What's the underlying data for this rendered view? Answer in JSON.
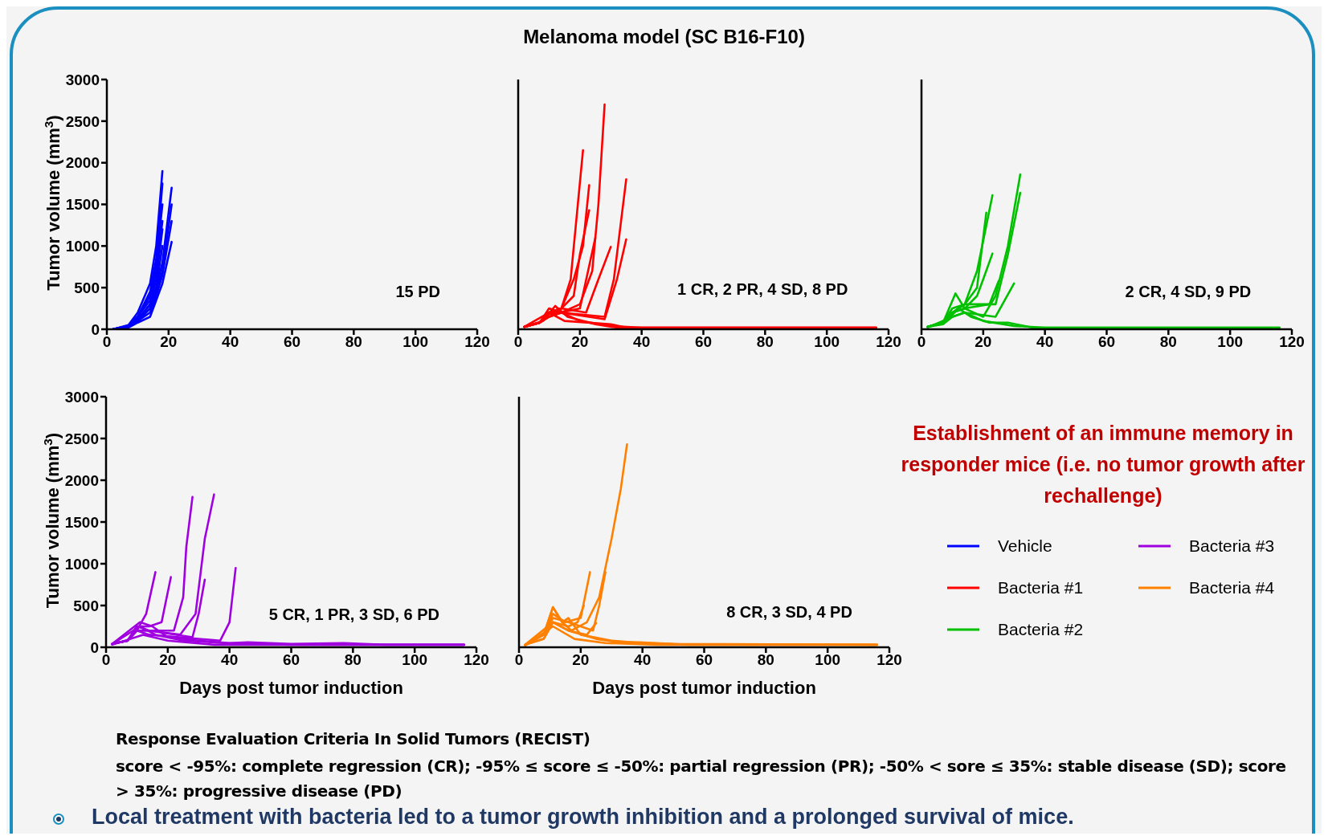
{
  "chart_data": [
    {
      "type": "line",
      "ylabel": "Tumor volume (mm$^{3}$)",
      "xlim": [
        0,
        120
      ],
      "xticks": [
        0,
        20,
        40,
        60,
        80,
        100,
        120
      ],
      "ylim": [
        0,
        3000
      ],
      "yticks": [
        0,
        500,
        1000,
        1500,
        2000,
        2500,
        3000
      ],
      "legend": "right",
      "annotations": [
        "15 PD"
      ],
      "series": [
        {
          "name": "Vehicle",
          "color": "#0000ff",
          "x": [
            2,
            7,
            10,
            14,
            16,
            18
          ],
          "values": [
            0,
            50,
            200,
            550,
            1000,
            1900
          ]
        },
        {
          "color": "#0000ff",
          "x": [
            2,
            7,
            10,
            14,
            16,
            18
          ],
          "values": [
            0,
            40,
            150,
            450,
            850,
            1750
          ]
        },
        {
          "color": "#0000ff",
          "x": [
            2,
            7,
            10,
            14,
            16,
            18
          ],
          "values": [
            0,
            40,
            150,
            400,
            800,
            1500
          ]
        },
        {
          "color": "#0000ff",
          "x": [
            2,
            7,
            10,
            14,
            16,
            18
          ],
          "values": [
            0,
            30,
            120,
            300,
            600,
            1200
          ]
        },
        {
          "color": "#0000ff",
          "x": [
            2,
            7,
            10,
            14,
            16,
            18
          ],
          "values": [
            0,
            30,
            100,
            250,
            500,
            1000
          ]
        },
        {
          "color": "#0000ff",
          "x": [
            2,
            7,
            10,
            14,
            16,
            18,
            21
          ],
          "values": [
            0,
            30,
            100,
            300,
            500,
            800,
            1700
          ]
        },
        {
          "color": "#0000ff",
          "x": [
            2,
            7,
            10,
            14,
            16,
            18,
            21
          ],
          "values": [
            0,
            30,
            100,
            250,
            450,
            700,
            1500
          ]
        },
        {
          "color": "#0000ff",
          "x": [
            2,
            7,
            10,
            14,
            16,
            18,
            21
          ],
          "values": [
            0,
            30,
            100,
            200,
            400,
            650,
            1300
          ]
        },
        {
          "color": "#0000ff",
          "x": [
            2,
            7,
            10,
            14,
            16,
            18,
            21
          ],
          "values": [
            0,
            20,
            80,
            150,
            350,
            550,
            1050
          ]
        },
        {
          "color": "#0000ff",
          "x": [
            2,
            7,
            10,
            14,
            16,
            18
          ],
          "values": [
            0,
            40,
            150,
            350,
            700,
            1300
          ]
        }
      ]
    },
    {
      "type": "line",
      "xlim": [
        0,
        120
      ],
      "xticks": [
        0,
        20,
        40,
        60,
        80,
        100,
        120
      ],
      "ylim": [
        0,
        3000
      ],
      "yticks": [
        0,
        500,
        1000,
        1500,
        2000,
        2500,
        3000
      ],
      "tick_labels": "x",
      "legend": "right",
      "annotations": [
        "1 CR, 2 PR, 4 SD, 8 PD"
      ],
      "series": [
        {
          "name": "Bacteria #1",
          "color": "#ff0000",
          "x": [
            2,
            7,
            10,
            14,
            17,
            21
          ],
          "values": [
            30,
            80,
            200,
            250,
            600,
            2150
          ]
        },
        {
          "color": "#ff0000",
          "x": [
            2,
            7,
            10,
            14,
            20,
            24,
            26,
            28
          ],
          "values": [
            30,
            80,
            180,
            200,
            300,
            700,
            1500,
            2700
          ]
        },
        {
          "color": "#ff0000",
          "x": [
            2,
            7,
            10,
            14,
            28,
            31,
            35
          ],
          "values": [
            30,
            80,
            150,
            200,
            150,
            600,
            1800
          ]
        },
        {
          "color": "#ff0000",
          "x": [
            2,
            7,
            10,
            14,
            28,
            32,
            35
          ],
          "values": [
            30,
            80,
            150,
            200,
            120,
            600,
            1080
          ]
        },
        {
          "color": "#ff0000",
          "x": [
            2,
            7,
            10,
            14,
            18,
            21,
            23
          ],
          "values": [
            30,
            80,
            200,
            250,
            600,
            1000,
            1730
          ]
        },
        {
          "color": "#ff0000",
          "x": [
            2,
            7,
            10,
            14,
            18,
            20,
            23
          ],
          "values": [
            30,
            80,
            200,
            250,
            400,
            900,
            1430
          ]
        },
        {
          "color": "#ff0000",
          "x": [
            2,
            7,
            10,
            14,
            20,
            25
          ],
          "values": [
            30,
            80,
            200,
            200,
            250,
            1100
          ]
        },
        {
          "color": "#ff0000",
          "x": [
            2,
            7,
            10,
            14,
            22,
            26,
            30
          ],
          "values": [
            30,
            80,
            200,
            250,
            200,
            600,
            990
          ]
        },
        {
          "color": "#ff0000",
          "x": [
            2,
            7,
            10,
            14,
            20,
            30,
            40,
            116
          ],
          "values": [
            30,
            80,
            250,
            200,
            100,
            40,
            20,
            20
          ]
        },
        {
          "color": "#ff0000",
          "x": [
            2,
            8,
            12,
            16,
            25,
            32,
            116
          ],
          "values": [
            30,
            100,
            280,
            150,
            60,
            20,
            20
          ]
        },
        {
          "color": "#ff0000",
          "x": [
            2,
            10,
            15,
            30,
            35,
            116
          ],
          "values": [
            30,
            200,
            100,
            60,
            20,
            20
          ]
        }
      ]
    },
    {
      "type": "line",
      "xlim": [
        0,
        120
      ],
      "xticks": [
        0,
        20,
        40,
        60,
        80,
        100,
        120
      ],
      "ylim": [
        0,
        3000
      ],
      "yticks": [
        0,
        500,
        1000,
        1500,
        2000,
        2500,
        3000
      ],
      "tick_labels": "x",
      "legend": "bottom",
      "annotations": [
        "2 CR, 4 SD, 9 PD"
      ],
      "series": [
        {
          "name": "Bacteria #2",
          "color": "#00c000",
          "x": [
            2,
            7,
            11,
            14,
            20,
            24,
            28,
            32
          ],
          "values": [
            30,
            80,
            430,
            250,
            150,
            400,
            1000,
            1860
          ]
        },
        {
          "color": "#00c000",
          "x": [
            2,
            7,
            10,
            14,
            24,
            28,
            32
          ],
          "values": [
            30,
            80,
            250,
            300,
            300,
            900,
            1640
          ]
        },
        {
          "color": "#00c000",
          "x": [
            2,
            7,
            10,
            14,
            18,
            23
          ],
          "values": [
            30,
            80,
            200,
            300,
            700,
            1610
          ]
        },
        {
          "color": "#00c000",
          "x": [
            2,
            7,
            10,
            14,
            18,
            21
          ],
          "values": [
            30,
            80,
            200,
            300,
            500,
            1400
          ]
        },
        {
          "color": "#00c000",
          "x": [
            2,
            7,
            10,
            14,
            18,
            20,
            23
          ],
          "values": [
            30,
            80,
            200,
            250,
            400,
            600,
            910
          ]
        },
        {
          "color": "#00c000",
          "x": [
            2,
            7,
            10,
            14,
            22,
            25
          ],
          "values": [
            30,
            80,
            200,
            250,
            300,
            580
          ]
        },
        {
          "color": "#00c000",
          "x": [
            2,
            7,
            10,
            14,
            24,
            30
          ],
          "values": [
            30,
            60,
            150,
            200,
            150,
            550
          ]
        },
        {
          "color": "#00c000",
          "x": [
            2,
            8,
            12,
            16,
            22,
            28,
            36,
            116
          ],
          "values": [
            30,
            100,
            250,
            150,
            80,
            80,
            20,
            20
          ]
        },
        {
          "color": "#00c000",
          "x": [
            2,
            10,
            14,
            20,
            30,
            40,
            116
          ],
          "values": [
            20,
            150,
            200,
            100,
            40,
            20,
            20
          ]
        }
      ]
    },
    {
      "type": "line",
      "ylabel": "Tumor volume (mm$^{3}$)",
      "xlabel": "Days post tumor induction",
      "xlim": [
        0,
        120
      ],
      "xticks": [
        0,
        20,
        40,
        60,
        80,
        100,
        120
      ],
      "ylim": [
        0,
        3000
      ],
      "yticks": [
        0,
        500,
        1000,
        1500,
        2000,
        2500,
        3000
      ],
      "legend": "right",
      "annotations": [
        "5 CR, 1 PR, 3 SD, 6 PD"
      ],
      "series": [
        {
          "name": "Bacteria #3",
          "color": "#a000e0",
          "x": [
            2,
            7,
            10,
            13,
            16
          ],
          "values": [
            40,
            80,
            200,
            400,
            900
          ]
        },
        {
          "color": "#a000e0",
          "x": [
            2,
            7,
            10,
            14,
            18,
            21
          ],
          "values": [
            40,
            80,
            250,
            250,
            300,
            840
          ]
        },
        {
          "color": "#a000e0",
          "x": [
            2,
            7,
            10,
            14,
            22,
            25,
            26,
            28
          ],
          "values": [
            40,
            80,
            250,
            200,
            200,
            600,
            1200,
            1800
          ]
        },
        {
          "color": "#a000e0",
          "x": [
            2,
            7,
            10,
            14,
            24,
            29,
            32,
            35
          ],
          "values": [
            40,
            80,
            200,
            200,
            150,
            400,
            1300,
            1830
          ]
        },
        {
          "color": "#a000e0",
          "x": [
            2,
            7,
            10,
            14,
            28,
            30,
            32
          ],
          "values": [
            40,
            80,
            200,
            200,
            120,
            400,
            810
          ]
        },
        {
          "color": "#a000e0",
          "x": [
            2,
            7,
            10,
            14,
            37,
            40,
            42
          ],
          "values": [
            40,
            80,
            200,
            150,
            80,
            300,
            950
          ]
        },
        {
          "color": "#a000e0",
          "x": [
            2,
            11,
            15,
            20,
            30,
            40,
            46,
            60,
            77,
            90,
            116
          ],
          "values": [
            40,
            300,
            250,
            120,
            80,
            50,
            60,
            40,
            50,
            30,
            30
          ]
        },
        {
          "color": "#a000e0",
          "x": [
            2,
            11,
            16,
            25,
            38,
            60,
            116
          ],
          "values": [
            40,
            250,
            150,
            80,
            50,
            30,
            30
          ]
        },
        {
          "color": "#a000e0",
          "x": [
            2,
            12,
            20,
            35,
            116
          ],
          "values": [
            30,
            150,
            80,
            30,
            30
          ]
        }
      ]
    },
    {
      "type": "line",
      "xlabel": "Days post tumor induction",
      "xlim": [
        0,
        120
      ],
      "xticks": [
        0,
        20,
        40,
        60,
        80,
        100,
        120
      ],
      "ylim": [
        0,
        3000
      ],
      "yticks": [
        0,
        500,
        1000,
        1500,
        2000,
        2500,
        3000
      ],
      "tick_labels": "x",
      "legend": "right",
      "annotations": [
        "8 CR, 3 SD, 4 PD"
      ],
      "series": [
        {
          "name": "Bacteria #4",
          "color": "#ff8000",
          "x": [
            2,
            8,
            11,
            14,
            17,
            22,
            26,
            30,
            33,
            35
          ],
          "values": [
            30,
            150,
            480,
            300,
            200,
            300,
            600,
            1300,
            1900,
            2430
          ]
        },
        {
          "color": "#ff8000",
          "x": [
            2,
            8,
            11,
            15,
            20,
            23
          ],
          "values": [
            30,
            150,
            400,
            300,
            350,
            900
          ]
        },
        {
          "color": "#ff8000",
          "x": [
            2,
            8,
            11,
            16,
            24,
            26,
            28
          ],
          "values": [
            30,
            150,
            350,
            300,
            200,
            500,
            900
          ]
        },
        {
          "color": "#ff8000",
          "x": [
            2,
            8,
            11,
            16,
            19,
            21
          ],
          "values": [
            30,
            100,
            300,
            250,
            300,
            500
          ]
        },
        {
          "color": "#ff8000",
          "x": [
            2,
            8,
            11,
            16,
            22,
            25
          ],
          "values": [
            30,
            100,
            300,
            200,
            150,
            290
          ]
        },
        {
          "color": "#ff8000",
          "x": [
            2,
            8,
            11,
            14,
            16,
            20,
            30,
            40,
            50,
            116
          ],
          "values": [
            30,
            150,
            480,
            300,
            350,
            150,
            80,
            50,
            40,
            30
          ]
        },
        {
          "color": "#ff8000",
          "x": [
            2,
            11,
            16,
            25,
            32,
            39,
            55,
            116
          ],
          "values": [
            30,
            300,
            200,
            100,
            60,
            60,
            30,
            30
          ]
        },
        {
          "color": "#ff8000",
          "x": [
            2,
            11,
            18,
            28,
            45,
            116
          ],
          "values": [
            20,
            250,
            100,
            50,
            30,
            30
          ]
        }
      ]
    },
    {
      "type": "other",
      "title": "Melanoma model (SC B16-F10)",
      "annotations": [
        "Establishment of an immune memory in responder mice (i.e. no tumor growth after rechallenge)",
        "Response Evaluation Criteria In Solid Tumors (RECIST)",
        "score < -95%: complete regression (CR);  -95% ≤ score ≤ -50%: partial regression (PR); -50% < sore ≤ 35%: stable disease (SD); score > 35%: progressive disease (PD)",
        "Local treatment with bacteria led to a tumor growth inhibition and a prolonged survival of mice."
      ]
    }
  ]
}
